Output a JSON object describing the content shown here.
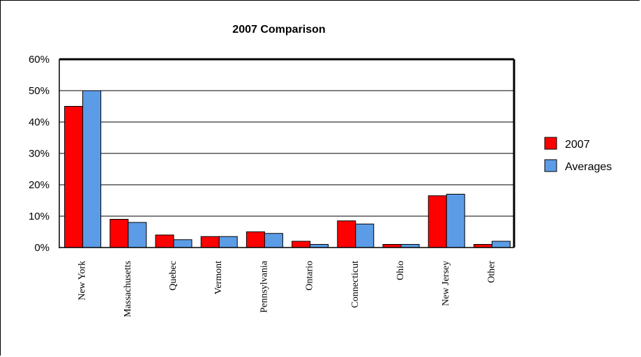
{
  "chart_data": {
    "type": "bar",
    "title": "2007 Comparison",
    "xlabel": "",
    "ylabel": "",
    "ylim": [
      0,
      60
    ],
    "yticks": [
      0,
      10,
      20,
      30,
      40,
      50,
      60
    ],
    "ytick_labels": [
      "0%",
      "10%",
      "20%",
      "30%",
      "40%",
      "50%",
      "60%"
    ],
    "grid": "horizontal",
    "legend_position": "right",
    "categories": [
      "New York",
      "Massachusetts",
      "Quebec",
      "Vermont",
      "Pennsylvania",
      "Ontario",
      "Connecticut",
      "Ohio",
      "New Jersey",
      "Other"
    ],
    "series": [
      {
        "name": "2007",
        "color": "#ff0000",
        "values": [
          45,
          9,
          4,
          3.5,
          5,
          2,
          8.5,
          1,
          16.5,
          1
        ]
      },
      {
        "name": "Averages",
        "color": "#5c9ce6",
        "values": [
          50,
          8,
          2.5,
          3.5,
          4.5,
          1,
          7.5,
          1,
          17,
          2
        ]
      }
    ]
  }
}
